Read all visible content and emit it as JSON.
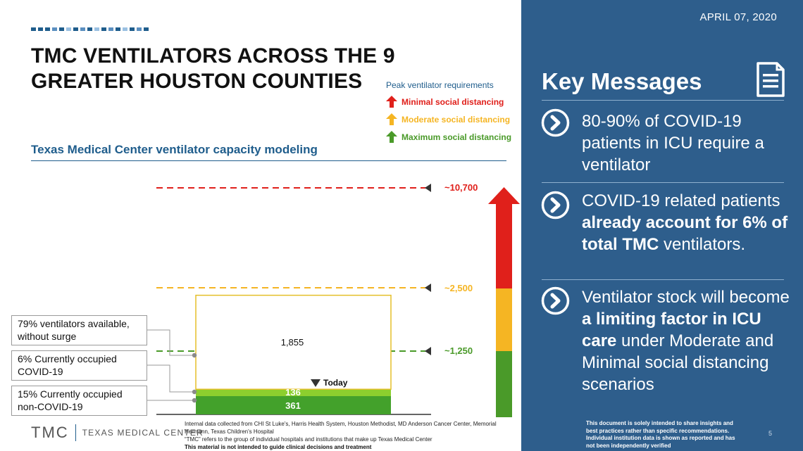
{
  "slide": {
    "title": "TMC VENTILATORS ACROSS THE 9 GREATER HOUSTON COUNTIES",
    "subtitle": "Texas Medical Center ventilator capacity modeling",
    "date": "APRIL 07, 2020",
    "page_number": "5"
  },
  "legend": {
    "heading": "Peak ventilator requirements",
    "items": [
      {
        "label": "Minimal social distancing",
        "color": "#e0201b"
      },
      {
        "label": "Moderate social distancing",
        "color": "#f5b523"
      },
      {
        "label": "Maximum social distancing",
        "color": "#4a9a29"
      }
    ]
  },
  "chart_data": {
    "type": "bar",
    "title": "Texas Medical Center ventilator capacity modeling",
    "bar_stack": [
      {
        "name": "15% Currently occupied non-COVID-19",
        "value": 361,
        "label": "361",
        "color": "#43a12b"
      },
      {
        "name": "6% Currently occupied COVID-19",
        "value": 136,
        "label": "136",
        "color": "#8ccf2e"
      },
      {
        "name": "79% ventilators available, without surge",
        "value": 1855,
        "label": "1,855",
        "color": "#ffffff"
      }
    ],
    "total_capacity": 2352,
    "levels": [
      {
        "label": "~10,700",
        "value": 10700,
        "color": "#e0201b"
      },
      {
        "label": "~2,500",
        "value": 2500,
        "color": "#f5b523"
      },
      {
        "label": "~1,250",
        "value": 1250,
        "color": "#4a9a29"
      }
    ],
    "today_label": "Today",
    "callouts": [
      "79% ventilators available, without surge",
      "6% Currently occupied COVID-19",
      "15% Currently occupied non-COVID-19"
    ]
  },
  "footer": {
    "logo_text": "TMC",
    "logo_name": "TEXAS MEDICAL CENTER",
    "note1": "Internal data collected from CHI St Luke's, Harris Health System, Houston Methodist, MD Anderson Cancer Center, Memorial Hermann, Texas Children's Hospital",
    "note2": "“TMC” refers to the group of individual hospitals and institutions that make up Texas Medical Center",
    "note3": "This material is not intended to guide clinical decisions and treatment"
  },
  "panel": {
    "title": "Key Messages",
    "messages": [
      {
        "html": "80-90% of COVID-19 patients in ICU require a ventilator"
      },
      {
        "html": "COVID-19 related patients <b>already account for 6% of total TMC</b> ventilators."
      },
      {
        "html": "Ventilator stock will become <b>a limiting factor in ICU care</b> under Moderate and Minimal social distancing scenarios"
      }
    ],
    "disclaimer": "This document is solely intended to share insights and best practices rather than specific recommendations. Individual institution data is shown as reported and has not been independently verified"
  },
  "icons": [
    "document-icon",
    "chevron-right-circle-icon",
    "arrow-up-icon",
    "triangle-down-icon"
  ]
}
